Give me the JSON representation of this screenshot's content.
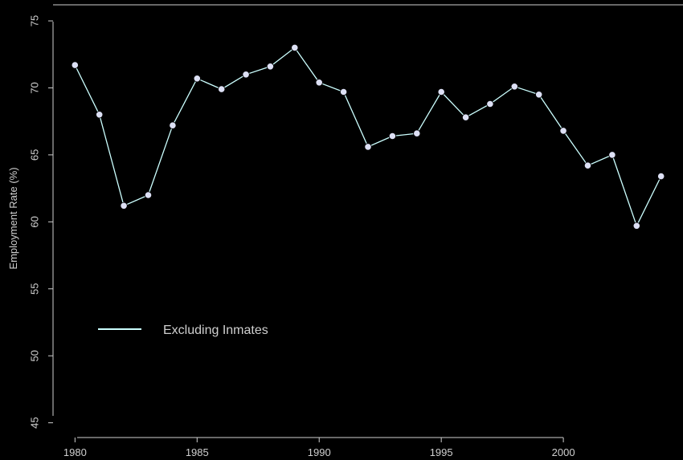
{
  "chart_data": {
    "type": "line",
    "title": "",
    "xlabel": "",
    "ylabel": "Employment Rate (%)",
    "xlim": [
      1979.1,
      2004.9
    ],
    "ylim": [
      43.9,
      76.2
    ],
    "x_ticks": [
      1980,
      1985,
      1990,
      1995,
      2000
    ],
    "y_ticks": [
      45,
      50,
      55,
      60,
      65,
      70,
      75
    ],
    "grid": false,
    "legend_position": "lower-left",
    "colors": {
      "background": "#000000",
      "axis": "#cfcfcf",
      "line": "#ccffff",
      "marker": "#dde0f5"
    },
    "series": [
      {
        "name": "Excluding Inmates",
        "x": [
          1980,
          1981,
          1982,
          1983,
          1984,
          1985,
          1986,
          1987,
          1988,
          1989,
          1990,
          1991,
          1992,
          1993,
          1994,
          1995,
          1996,
          1997,
          1998,
          1999,
          2000,
          2001,
          2002,
          2003,
          2004
        ],
        "values": [
          71.7,
          68.0,
          61.2,
          62.0,
          67.2,
          70.7,
          69.9,
          71.0,
          71.6,
          73.0,
          70.4,
          69.7,
          65.6,
          66.4,
          66.6,
          69.7,
          67.8,
          68.8,
          70.1,
          69.5,
          66.8,
          64.2,
          65.0,
          59.7,
          63.4
        ]
      }
    ]
  }
}
